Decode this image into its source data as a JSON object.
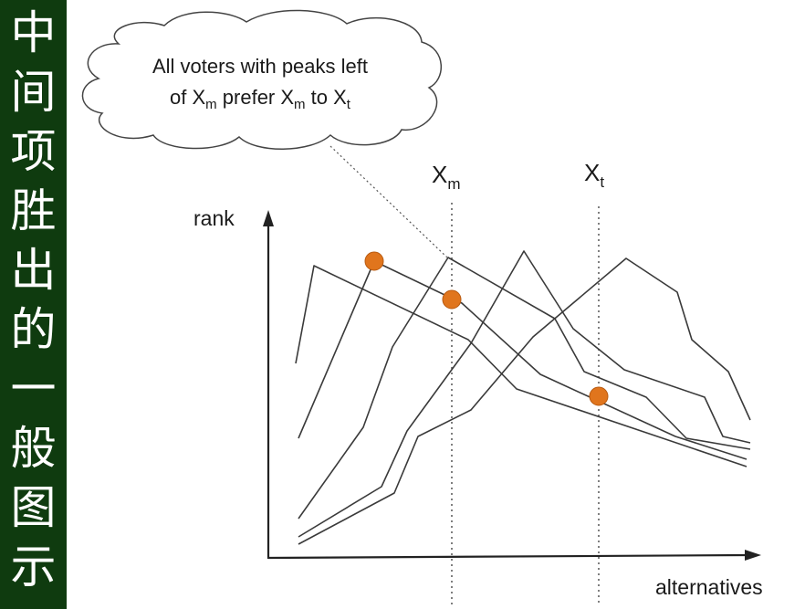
{
  "sidebar": {
    "title_chars": [
      "中",
      "间",
      "项",
      "胜",
      "出",
      "的",
      "一",
      "般",
      "图",
      "示"
    ]
  },
  "diagram": {
    "callout": {
      "line1": "All voters with peaks left",
      "line2_of": "of X",
      "line2_sub1": "m",
      "line2_mid": " prefer X",
      "line2_sub2": "m",
      "line2_to": " to X",
      "line2_sub3": "t"
    },
    "xm_label": "X",
    "xm_sub": "m",
    "xt_label": "X",
    "xt_sub": "t",
    "y_axis_label": "rank",
    "x_axis_label": "alternatives"
  },
  "colors": {
    "sidebar_bg": "#0f3b0f",
    "marker": "#e0751d",
    "line": "#333333"
  }
}
